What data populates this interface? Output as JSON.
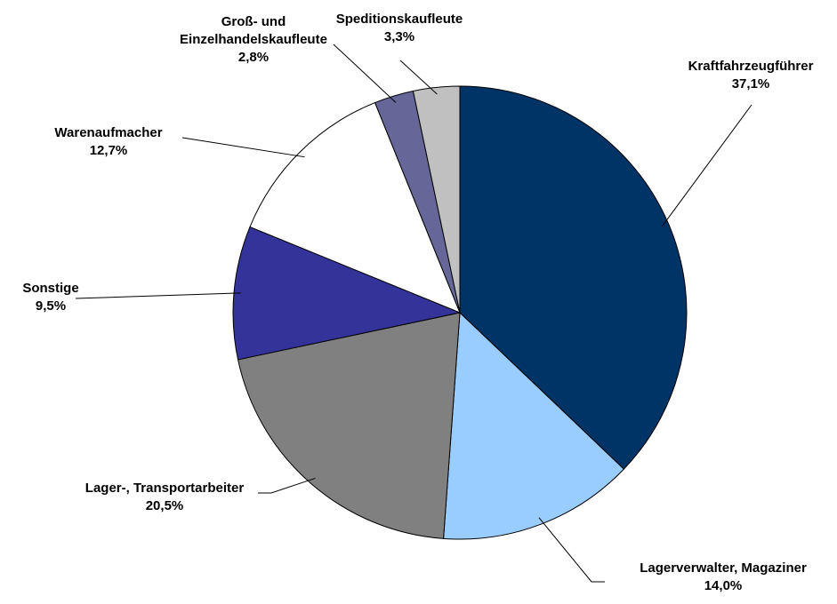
{
  "chart_data": {
    "type": "pie",
    "categories": [
      "Kraftfahrzeugführer",
      "Lagerverwalter, Magaziner",
      "Lager-, Transportarbeiter",
      "Sonstige",
      "Warenaufmacher",
      "Groß- und Einzelhandelskaufleute",
      "Speditionskaufleute"
    ],
    "values": [
      37.1,
      14.0,
      20.5,
      9.5,
      12.7,
      2.8,
      3.3
    ],
    "value_labels": [
      "37,1%",
      "14,0%",
      "20,5%",
      "9,5%",
      "12,7%",
      "2,8%",
      "3,3%"
    ],
    "colors": [
      "#003366",
      "#99ccff",
      "#808080",
      "#333399",
      "#ffffff",
      "#666699",
      "#c0c0c0"
    ]
  }
}
